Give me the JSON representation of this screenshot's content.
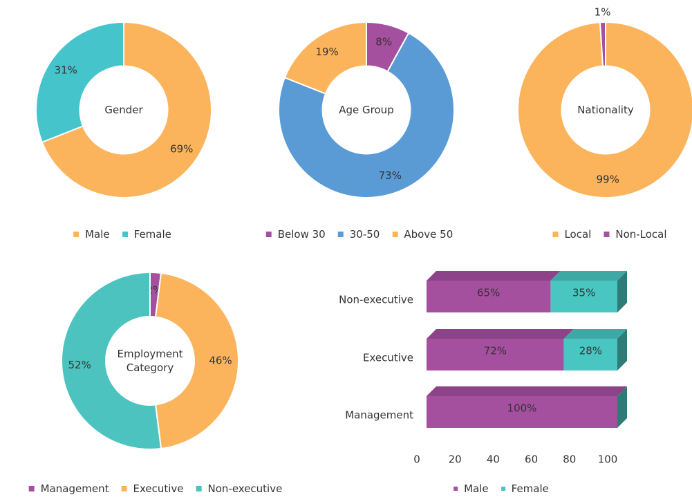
{
  "chart_data": [
    {
      "type": "donut",
      "center_label": "Gender",
      "categories": [
        "Male",
        "Female"
      ],
      "values": [
        69,
        31
      ],
      "value_labels": [
        "69%",
        "31%"
      ],
      "colors": [
        "#fbb45c",
        "#45c4cb"
      ]
    },
    {
      "type": "donut",
      "center_label": "Age Group",
      "categories": [
        "Below 30",
        "30-50",
        "Above 50"
      ],
      "values": [
        8,
        73,
        19
      ],
      "value_labels": [
        "8%",
        "73%",
        "19%"
      ],
      "colors": [
        "#a54f9f",
        "#5b9bd5",
        "#fbb45c"
      ]
    },
    {
      "type": "donut",
      "center_label": "Nationality",
      "categories": [
        "Local",
        "Non-Local"
      ],
      "values": [
        99,
        1
      ],
      "value_labels": [
        "99%",
        "1%"
      ],
      "colors": [
        "#fbb45c",
        "#a54f9f"
      ]
    },
    {
      "type": "donut",
      "center_label": "Employment Category",
      "categories": [
        "Management",
        "Executive",
        "Non-executive"
      ],
      "values": [
        2,
        46,
        52
      ],
      "value_labels": [
        "2%",
        "46%",
        "52%"
      ],
      "colors": [
        "#a54f9f",
        "#fbb45c",
        "#4dc3bf"
      ]
    },
    {
      "type": "bar",
      "orientation": "horizontal",
      "stacked": true,
      "categories": [
        "Non-executive",
        "Executive",
        "Management"
      ],
      "series": [
        {
          "name": "Male",
          "color": "#a54f9f",
          "values": [
            65,
            72,
            100
          ],
          "value_labels": [
            "65%",
            "72%",
            "100%"
          ]
        },
        {
          "name": "Female",
          "color": "#4ac6c2",
          "values": [
            35,
            28,
            0
          ],
          "value_labels": [
            "35%",
            "28%",
            null
          ]
        }
      ],
      "xlim": [
        0,
        100
      ],
      "xticks": [
        0,
        20,
        40,
        60,
        80,
        100
      ]
    }
  ]
}
